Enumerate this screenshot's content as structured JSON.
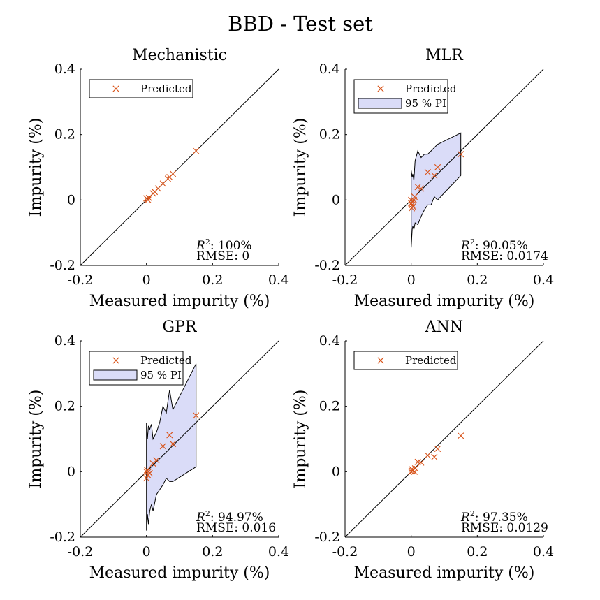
{
  "figure": {
    "title": "BBD - Test set"
  },
  "colors": {
    "marker": "#d95319",
    "band_fill": "#dadcf8",
    "band_edge": "#000000",
    "line": "#000000"
  },
  "chart_data": [
    {
      "type": "scatter",
      "title": "Mechanistic",
      "xlabel": "Measured impurity (%)",
      "ylabel": "Impurity (%)",
      "xlim": [
        -0.2,
        0.4
      ],
      "ylim": [
        -0.2,
        0.4
      ],
      "xticks": [
        "-0.2",
        "0",
        "0.2",
        "0.4"
      ],
      "yticks": [
        "-0.2",
        "0",
        "0.2",
        "0.4"
      ],
      "legend_entries": [
        {
          "type": "marker",
          "label": "Predicted"
        }
      ],
      "r2_label": "R",
      "r2_sup": "2",
      "r2_value": ": 100%",
      "rmse_text": "RMSE: 0",
      "identity_line": true,
      "series": [
        {
          "name": "Predicted",
          "points": [
            [
              0.0,
              0.005
            ],
            [
              0.003,
              0.002
            ],
            [
              0.005,
              0.0
            ],
            [
              0.008,
              0.006
            ],
            [
              0.02,
              0.02
            ],
            [
              0.025,
              0.025
            ],
            [
              0.035,
              0.035
            ],
            [
              0.05,
              0.05
            ],
            [
              0.065,
              0.065
            ],
            [
              0.07,
              0.07
            ],
            [
              0.08,
              0.08
            ],
            [
              0.15,
              0.15
            ]
          ]
        }
      ]
    },
    {
      "type": "scatter",
      "title": "MLR",
      "xlabel": "Measured impurity (%)",
      "ylabel": "Impurity (%)",
      "xlim": [
        -0.2,
        0.4
      ],
      "ylim": [
        -0.2,
        0.4
      ],
      "xticks": [
        "-0.2",
        "0",
        "0.2",
        "0.4"
      ],
      "yticks": [
        "-0.2",
        "0",
        "0.2",
        "0.4"
      ],
      "legend_entries": [
        {
          "type": "marker",
          "label": "Predicted"
        },
        {
          "type": "patch",
          "label": "95 % PI"
        }
      ],
      "r2_label": "R",
      "r2_sup": "2",
      "r2_value": ": 90.05%",
      "rmse_text": "RMSE: 0.0174",
      "identity_line": true,
      "series": [
        {
          "name": "Predicted",
          "points": [
            [
              0.0,
              -0.01
            ],
            [
              0.0,
              0.0
            ],
            [
              0.002,
              -0.025
            ],
            [
              0.003,
              -0.015
            ],
            [
              0.005,
              -0.02
            ],
            [
              0.008,
              0.0
            ],
            [
              0.01,
              0.01
            ],
            [
              0.02,
              0.04
            ],
            [
              0.03,
              0.035
            ],
            [
              0.05,
              0.085
            ],
            [
              0.07,
              0.075
            ],
            [
              0.08,
              0.1
            ],
            [
              0.15,
              0.14
            ]
          ]
        }
      ],
      "band": {
        "upper": [
          [
            0.0,
            0.09
          ],
          [
            0.003,
            0.07
          ],
          [
            0.005,
            0.08
          ],
          [
            0.008,
            0.06
          ],
          [
            0.012,
            0.12
          ],
          [
            0.02,
            0.15
          ],
          [
            0.03,
            0.13
          ],
          [
            0.04,
            0.14
          ],
          [
            0.05,
            0.14
          ],
          [
            0.06,
            0.15
          ],
          [
            0.07,
            0.16
          ],
          [
            0.08,
            0.17
          ],
          [
            0.15,
            0.205
          ]
        ],
        "lower": [
          [
            0.0,
            -0.145
          ],
          [
            0.003,
            -0.09
          ],
          [
            0.005,
            -0.08
          ],
          [
            0.008,
            -0.09
          ],
          [
            0.012,
            -0.07
          ],
          [
            0.02,
            -0.075
          ],
          [
            0.03,
            -0.05
          ],
          [
            0.04,
            -0.03
          ],
          [
            0.05,
            -0.015
          ],
          [
            0.06,
            -0.015
          ],
          [
            0.07,
            0.01
          ],
          [
            0.08,
            0.0
          ],
          [
            0.15,
            0.075
          ]
        ]
      }
    },
    {
      "type": "scatter",
      "title": "GPR",
      "xlabel": "Measured impurity (%)",
      "ylabel": "Impurity (%)",
      "xlim": [
        -0.2,
        0.4
      ],
      "ylim": [
        -0.2,
        0.4
      ],
      "xticks": [
        "-0.2",
        "0",
        "0.2",
        "0.4"
      ],
      "yticks": [
        "-0.2",
        "0",
        "0.2",
        "0.4"
      ],
      "legend_entries": [
        {
          "type": "marker",
          "label": "Predicted"
        },
        {
          "type": "patch",
          "label": "95 % PI"
        }
      ],
      "r2_label": "R",
      "r2_sup": "2",
      "r2_value": ": 94.97%",
      "rmse_text": "RMSE: 0.016",
      "identity_line": true,
      "series": [
        {
          "name": "Predicted",
          "points": [
            [
              0.0,
              0.0
            ],
            [
              0.0,
              -0.02
            ],
            [
              0.002,
              0.005
            ],
            [
              0.004,
              -0.01
            ],
            [
              0.006,
              0.0
            ],
            [
              0.01,
              -0.005
            ],
            [
              0.02,
              0.025
            ],
            [
              0.03,
              0.035
            ],
            [
              0.05,
              0.078
            ],
            [
              0.07,
              0.112
            ],
            [
              0.08,
              0.085
            ],
            [
              0.15,
              0.172
            ]
          ]
        }
      ],
      "band": {
        "upper": [
          [
            0.0,
            0.15
          ],
          [
            0.003,
            0.1
          ],
          [
            0.006,
            0.14
          ],
          [
            0.01,
            0.13
          ],
          [
            0.015,
            0.145
          ],
          [
            0.02,
            0.1
          ],
          [
            0.03,
            0.12
          ],
          [
            0.04,
            0.15
          ],
          [
            0.05,
            0.2
          ],
          [
            0.06,
            0.18
          ],
          [
            0.07,
            0.25
          ],
          [
            0.08,
            0.19
          ],
          [
            0.15,
            0.33
          ]
        ],
        "lower": [
          [
            0.0,
            -0.18
          ],
          [
            0.003,
            -0.13
          ],
          [
            0.006,
            -0.16
          ],
          [
            0.01,
            -0.12
          ],
          [
            0.015,
            -0.1
          ],
          [
            0.02,
            -0.12
          ],
          [
            0.03,
            -0.07
          ],
          [
            0.04,
            -0.055
          ],
          [
            0.05,
            -0.04
          ],
          [
            0.06,
            -0.02
          ],
          [
            0.07,
            -0.03
          ],
          [
            0.08,
            -0.03
          ],
          [
            0.15,
            0.015
          ]
        ]
      }
    },
    {
      "type": "scatter",
      "title": "ANN",
      "xlabel": "Measured impurity (%)",
      "ylabel": "Impurity (%)",
      "xlim": [
        -0.2,
        0.4
      ],
      "ylim": [
        -0.2,
        0.4
      ],
      "xticks": [
        "-0.2",
        "0",
        "0.2",
        "0.4"
      ],
      "yticks": [
        "-0.2",
        "0",
        "0.2",
        "0.4"
      ],
      "legend_entries": [
        {
          "type": "marker",
          "label": "Predicted"
        }
      ],
      "r2_label": "R",
      "r2_sup": "2",
      "r2_value": ": 97.35%",
      "rmse_text": "RMSE: 0.0129",
      "identity_line": true,
      "series": [
        {
          "name": "Predicted",
          "points": [
            [
              0.0,
              0.0
            ],
            [
              0.002,
              0.008
            ],
            [
              0.004,
              0.002
            ],
            [
              0.006,
              0.005
            ],
            [
              0.01,
              0.0
            ],
            [
              0.012,
              0.01
            ],
            [
              0.02,
              0.03
            ],
            [
              0.03,
              0.028
            ],
            [
              0.05,
              0.05
            ],
            [
              0.07,
              0.045
            ],
            [
              0.08,
              0.07
            ],
            [
              0.15,
              0.11
            ]
          ]
        }
      ]
    }
  ]
}
